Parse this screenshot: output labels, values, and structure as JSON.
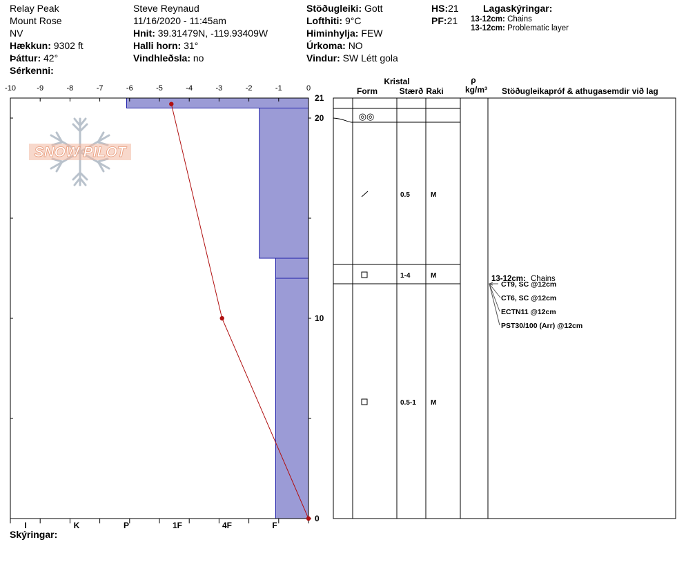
{
  "header": {
    "location": "Relay Peak",
    "region": "Mount Rose",
    "state": "NV",
    "elevation_label": "Hækkun:",
    "elevation_value": "9302 ft",
    "aspect_label": "Þáttur:",
    "aspect_value": "42°",
    "features_label": "Sérkenni:",
    "observer": "Steve Reynaud",
    "datetime": "11/16/2020 - 11:45am",
    "coords_label": "Hnit:",
    "coords_value": "39.31479N, -119.93409W",
    "slope_label": "Halli horn:",
    "slope_value": "31°",
    "wind_loading_label": "Vindhleðsla:",
    "wind_loading_value": "no",
    "stability_label": "Stöðugleiki:",
    "stability_value": "Gott",
    "air_temp_label": "Lofthiti:",
    "air_temp_value": "9°C",
    "sky_label": "Himinhylja:",
    "sky_value": "FEW",
    "precip_label": "Úrkoma:",
    "precip_value": "NO",
    "wind_label": "Vindur:",
    "wind_value": "SW Létt gola",
    "hs_label": "HS:",
    "hs_value": "21",
    "pf_label": "PF:",
    "pf_value": "21"
  },
  "layer_legend": {
    "title": "Lagaskýringar:",
    "items": [
      {
        "range": "13-12cm:",
        "text": "Chains"
      },
      {
        "range": "13-12cm:",
        "text": "Problematic layer"
      }
    ]
  },
  "logo_text": "SNOW PILOT",
  "footer": {
    "notes_label": "Skýringar:"
  },
  "colors": {
    "layer_fill": "#9b9bd6",
    "layer_line": "#1c1ca8",
    "temp_line": "#b01010",
    "logo": "#f2b8a0",
    "flake": "#b9c2cc"
  },
  "chart_data": {
    "type": "snow_profile",
    "temperature_axis": {
      "ticks": [
        "-10",
        "-9",
        "-8",
        "-7",
        "-6",
        "-5",
        "-4",
        "-3",
        "-2",
        "-1",
        "0"
      ],
      "range": [
        -10,
        0
      ]
    },
    "hardness_axis": {
      "ticks": [
        "I",
        "K",
        "P",
        "1F",
        "4F",
        "F"
      ]
    },
    "height_axis": {
      "range": [
        0,
        21
      ],
      "labels": [
        "21",
        "20",
        "10",
        "0"
      ]
    },
    "hardness_layers": [
      {
        "top": 21,
        "bottom": 20.5,
        "hardness_temp_equiv": -6.1
      },
      {
        "top": 20.5,
        "bottom": 13,
        "hardness_temp_equiv": -1.65
      },
      {
        "top": 13,
        "bottom": 12,
        "hardness_temp_equiv": -1.1
      },
      {
        "top": 12,
        "bottom": 0,
        "hardness_temp_equiv": -1.1
      }
    ],
    "temperature_profile": [
      {
        "depth": 20.7,
        "temp": -4.6
      },
      {
        "depth": 10,
        "temp": -2.9
      },
      {
        "depth": 0,
        "temp": 0
      }
    ],
    "grid_columns": {
      "kristal": "Kristal",
      "form": "Form",
      "size": "Stærð",
      "moisture": "Raki",
      "density_symbol": "ρ",
      "density_unit": "kg/m³",
      "tests": "Stöðugleikapróf & athugasemdir við lag"
    },
    "grid_layers": [
      {
        "top": 21,
        "bottom": 20.3,
        "form": "",
        "size": "",
        "moisture": ""
      },
      {
        "top": 20.3,
        "bottom": 20.6,
        "form": "◎◎",
        "size": "",
        "moisture": ""
      },
      {
        "top": 20.6,
        "bottom": 13,
        "form": "/",
        "size": "0.5",
        "moisture": "M"
      },
      {
        "top": 13,
        "bottom": 12,
        "form": "□",
        "size": "1-4",
        "moisture": "M"
      },
      {
        "top": 12,
        "bottom": 0,
        "form": "□",
        "size": "0.5-1",
        "moisture": "M"
      }
    ],
    "test_notes": {
      "layer_label": "13-12cm:",
      "layer_text": "Chains",
      "tests": [
        "CT9, SC @12cm",
        "CT6, SC @12cm",
        "ECTN11 @12cm",
        "PST30/100 (Arr) @12cm"
      ]
    }
  }
}
